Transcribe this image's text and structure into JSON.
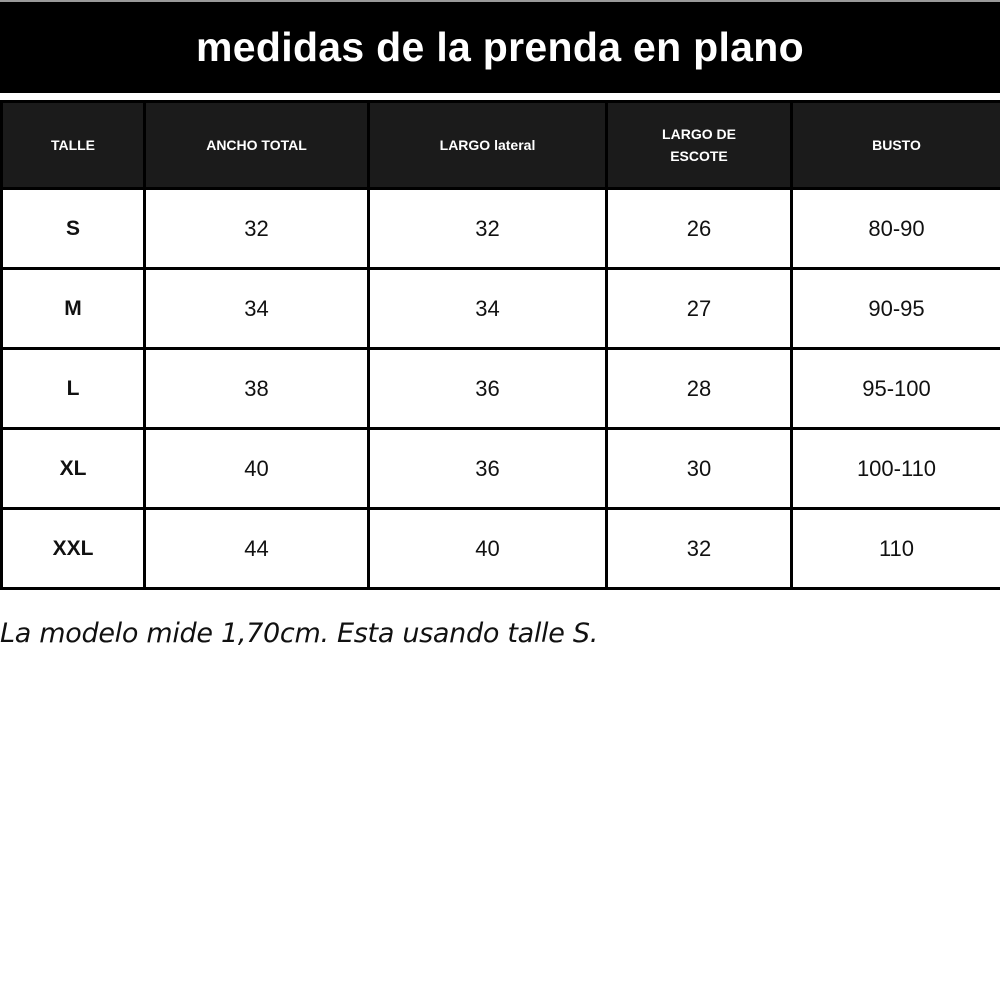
{
  "title": "medidas de la prenda en plano",
  "table": {
    "headers": [
      "TALLE",
      "ANCHO TOTAL",
      "LARGO lateral",
      "LARGO DE ESCOTE",
      "BUSTO"
    ],
    "rows": [
      [
        "S",
        "32",
        "32",
        "26",
        "80-90"
      ],
      [
        "M",
        "34",
        "34",
        "27",
        "90-95"
      ],
      [
        "L",
        "38",
        "36",
        "28",
        "95-100"
      ],
      [
        "XL",
        "40",
        "36",
        "30",
        "100-110"
      ],
      [
        "XXL",
        "44",
        "40",
        "32",
        "110"
      ]
    ]
  },
  "note": "La modelo mide 1,70cm. Esta usando talle S.",
  "colors": {
    "header_bg": "#1b1b1b",
    "title_bg": "#000000",
    "text": "#111111"
  }
}
